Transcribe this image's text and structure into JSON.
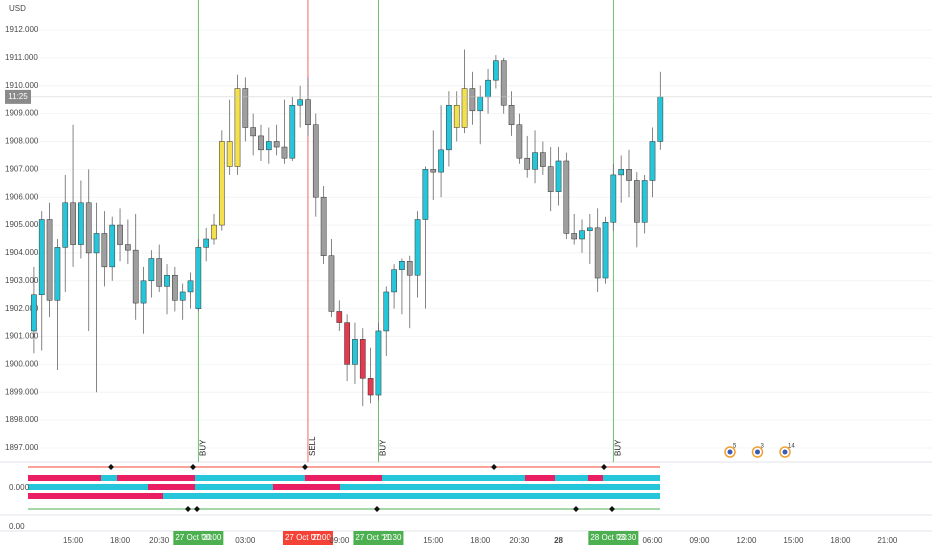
{
  "chart_data": {
    "type": "candlestick",
    "currency": "USD",
    "countdown": "11:25",
    "categories": [
      null,
      null,
      null,
      null,
      null,
      "15:00",
      null,
      null,
      null,
      null,
      null,
      "18:00",
      null,
      null,
      null,
      null,
      "20:30",
      null,
      null,
      null,
      null,
      "00:00",
      null,
      null,
      null,
      null,
      null,
      "03:00",
      null,
      null,
      null,
      null,
      null,
      null,
      null,
      "07:00",
      null,
      null,
      null,
      "09:00",
      null,
      null,
      null,
      null,
      "11:30",
      null,
      null,
      null,
      null,
      null,
      null,
      "15:00",
      null,
      null,
      null,
      null,
      null,
      "18:00",
      null,
      null,
      null,
      null,
      "20:30",
      null,
      null,
      null,
      null,
      "28",
      null,
      null,
      null,
      null,
      null,
      null,
      "03:30",
      null,
      null,
      null,
      null,
      "06:00",
      null,
      null,
      null,
      null,
      null,
      "09:00",
      null,
      null,
      null,
      null,
      null,
      "12:00",
      null,
      null,
      null,
      null,
      null,
      "15:00",
      null,
      null,
      null,
      null,
      null,
      "18:00",
      null,
      null,
      null,
      null,
      null,
      "21:00"
    ],
    "open": [
      1901.2,
      1902.5,
      1905.2,
      1902.3,
      1904.2,
      1905.8,
      1904.3,
      1905.8,
      1904.0,
      1904.7,
      1903.5,
      1905.0,
      1904.3,
      1904.1,
      1902.2,
      1903.0,
      1903.8,
      1902.8,
      1903.2,
      1902.3,
      1902.6,
      1902.0,
      1904.2,
      1904.5,
      1905.0,
      1908.0,
      1907.1,
      1909.9,
      1908.5,
      1908.2,
      1907.7,
      1908.0,
      1907.8,
      1907.4,
      1909.3,
      1909.5,
      1908.6,
      1906.0,
      1903.9,
      1901.9,
      1901.5,
      1900.0,
      1900.9,
      1899.5,
      1898.9,
      1901.2,
      1902.6,
      1903.4,
      1903.7,
      1903.2,
      1905.2,
      1907.0,
      1906.9,
      1907.7,
      1909.3,
      1908.5,
      1909.9,
      1909.1,
      1909.6,
      1910.2,
      1910.9,
      1909.3,
      1908.6,
      1907.4,
      1907.0,
      1907.6,
      1907.1,
      1906.2,
      1907.3,
      1904.7,
      1904.5,
      1904.8,
      1904.9,
      1903.1,
      1905.1,
      1906.8,
      1907.0,
      1906.6,
      1905.1,
      1906.6,
      1908.0,
      null,
      null,
      null,
      null,
      null,
      null,
      null,
      null,
      null,
      null,
      null,
      null,
      null,
      null,
      null,
      null,
      null,
      null,
      null,
      null,
      null,
      null,
      null,
      null,
      null,
      null,
      null,
      null,
      null
    ],
    "high": [
      1903.5,
      1905.5,
      1905.8,
      1904.5,
      1906.8,
      1908.6,
      1906.6,
      1907.0,
      1905.8,
      1905.5,
      1905.3,
      1905.6,
      1905.2,
      1905.4,
      1903.5,
      1904.1,
      1904.3,
      1903.6,
      1903.5,
      1902.9,
      1903.3,
      1904.5,
      1904.9,
      1905.4,
      1908.4,
      1909.5,
      1910.4,
      1910.3,
      1909.0,
      1908.6,
      1908.5,
      1908.6,
      1909.5,
      1909.6,
      1910.0,
      1910.3,
      1909.0,
      1906.4,
      1904.5,
      1902.3,
      1901.8,
      1901.5,
      1901.3,
      1900.6,
      1901.5,
      1902.8,
      1903.6,
      1903.8,
      1903.9,
      1905.5,
      1907.1,
      1908.4,
      1909.3,
      1909.8,
      1909.8,
      1911.3,
      1910.5,
      1910.0,
      1910.6,
      1911.1,
      1911.0,
      1909.8,
      1909.0,
      1908.2,
      1908.4,
      1908.0,
      1907.8,
      1907.8,
      1907.6,
      1905.4,
      1905.2,
      1905.4,
      1905.6,
      1905.3,
      1907.2,
      1907.5,
      1907.7,
      1906.9,
      1906.8,
      1908.5,
      1910.5,
      null,
      null,
      null,
      null,
      null,
      null,
      null,
      null,
      null,
      null,
      null,
      null,
      null,
      null,
      null,
      null,
      null,
      null,
      null,
      null,
      null,
      null,
      null,
      null,
      null,
      null,
      null,
      null,
      null
    ],
    "low": [
      1900.4,
      1900.5,
      1901.7,
      1899.8,
      1902.6,
      1903.5,
      1903.8,
      1901.2,
      1899.0,
      1902.8,
      1903.0,
      1903.7,
      1903.6,
      1901.6,
      1901.1,
      1902.4,
      1902.6,
      1901.8,
      1901.9,
      1901.6,
      1902.0,
      1901.9,
      1903.7,
      1904.3,
      1904.8,
      1906.8,
      1906.8,
      1908.0,
      1907.5,
      1907.3,
      1907.2,
      1907.5,
      1907.2,
      1907.3,
      1908.5,
      1908.2,
      1905.3,
      1903.6,
      1901.7,
      1901.2,
      1899.4,
      1899.3,
      1898.5,
      1898.6,
      1898.7,
      1900.3,
      1902.0,
      1901.8,
      1901.3,
      1902.4,
      1902.0,
      1905.9,
      1906.0,
      1907.1,
      1908.0,
      1908.3,
      1908.6,
      1907.9,
      1909.0,
      1909.9,
      1909.0,
      1908.2,
      1907.2,
      1906.7,
      1906.5,
      1906.8,
      1905.5,
      1905.7,
      1904.5,
      1904.3,
      1904.0,
      1903.6,
      1902.6,
      1902.9,
      1904.8,
      1905.8,
      1906.0,
      1904.2,
      1904.7,
      1906.0,
      1907.7,
      null,
      null,
      null,
      null,
      null,
      null,
      null,
      null,
      null,
      null,
      null,
      null,
      null,
      null,
      null,
      null,
      null,
      null,
      null,
      null,
      null,
      null,
      null,
      null,
      null,
      null,
      null,
      null,
      null
    ],
    "close": [
      1902.5,
      1905.2,
      1902.3,
      1904.2,
      1905.8,
      1904.3,
      1905.8,
      1904.0,
      1904.7,
      1903.5,
      1905.0,
      1904.3,
      1904.1,
      1902.2,
      1903.0,
      1903.8,
      1902.8,
      1903.2,
      1902.3,
      1902.6,
      1903.0,
      1904.2,
      1904.5,
      1905.0,
      1908.0,
      1907.1,
      1909.9,
      1908.5,
      1908.2,
      1907.7,
      1908.0,
      1907.8,
      1907.4,
      1909.3,
      1909.5,
      1908.6,
      1906.0,
      1903.9,
      1901.9,
      1901.5,
      1900.0,
      1900.9,
      1899.5,
      1898.9,
      1901.2,
      1902.6,
      1903.4,
      1903.7,
      1903.2,
      1905.2,
      1907.0,
      1906.9,
      1907.7,
      1909.3,
      1908.5,
      1909.9,
      1909.1,
      1909.6,
      1910.2,
      1910.9,
      1909.3,
      1908.6,
      1907.4,
      1907.0,
      1907.6,
      1907.1,
      1906.2,
      1907.3,
      1904.7,
      1904.5,
      1904.8,
      1904.9,
      1903.1,
      1905.1,
      1906.8,
      1907.0,
      1906.6,
      1905.1,
      1906.6,
      1908.0,
      1909.6,
      null,
      null,
      null,
      null,
      null,
      null,
      null,
      null,
      null,
      null,
      null,
      null,
      null,
      null,
      null,
      null,
      null,
      null,
      null,
      null,
      null,
      null,
      null,
      null,
      null,
      null,
      null,
      null,
      null
    ],
    "up_color": "#26c6da",
    "down_color": "#9e9e9e",
    "highlights": [
      {
        "color": "#f4e04d",
        "from": 23,
        "to": 26
      },
      {
        "color": "#e53950",
        "from": 39,
        "to": 40
      },
      {
        "color": "#e53950",
        "from": 42,
        "to": 43
      },
      {
        "color": "#f4e04d",
        "from": 54,
        "to": 55
      }
    ],
    "ylim": [
      1896.6,
      1913.0
    ],
    "yticks": [
      {
        "value": 1897,
        "label": "1897.000"
      },
      {
        "value": 1898,
        "label": "1898.000"
      },
      {
        "value": 1899,
        "label": "1899.000"
      },
      {
        "value": 1900,
        "label": "1900.000"
      },
      {
        "value": 1901,
        "label": "1901.000"
      },
      {
        "value": 1902,
        "label": "1902.000"
      },
      {
        "value": 1903,
        "label": "1903.000"
      },
      {
        "value": 1904,
        "label": "1904.000"
      },
      {
        "value": 1905,
        "label": "1905.000"
      },
      {
        "value": 1906,
        "label": "1906.000"
      },
      {
        "value": 1907,
        "label": "1907.000"
      },
      {
        "value": 1908,
        "label": "1908.000"
      },
      {
        "value": 1909,
        "label": "1909.000"
      },
      {
        "value": 1910,
        "label": "1910.000"
      },
      {
        "value": 1911,
        "label": "1911.000"
      },
      {
        "value": 1912,
        "label": "1912.000"
      }
    ],
    "signals": [
      {
        "text": "BUY",
        "date": "27 Oct '20",
        "time": "00:00",
        "color": "#4caf50"
      },
      {
        "text": "SELL",
        "date": "27 Oct '20",
        "time": "07:00",
        "color": "#f44336"
      },
      {
        "text": "BUY",
        "date": "27 Oct '20",
        "time": "11:30",
        "color": "#4caf50"
      },
      {
        "text": "BUY",
        "date": "28 Oct '20",
        "time": "03:30",
        "color": "#4caf50"
      }
    ],
    "events": [
      "5",
      "3",
      "14"
    ],
    "indicator_labels": [
      "0.000",
      "0.00"
    ]
  }
}
